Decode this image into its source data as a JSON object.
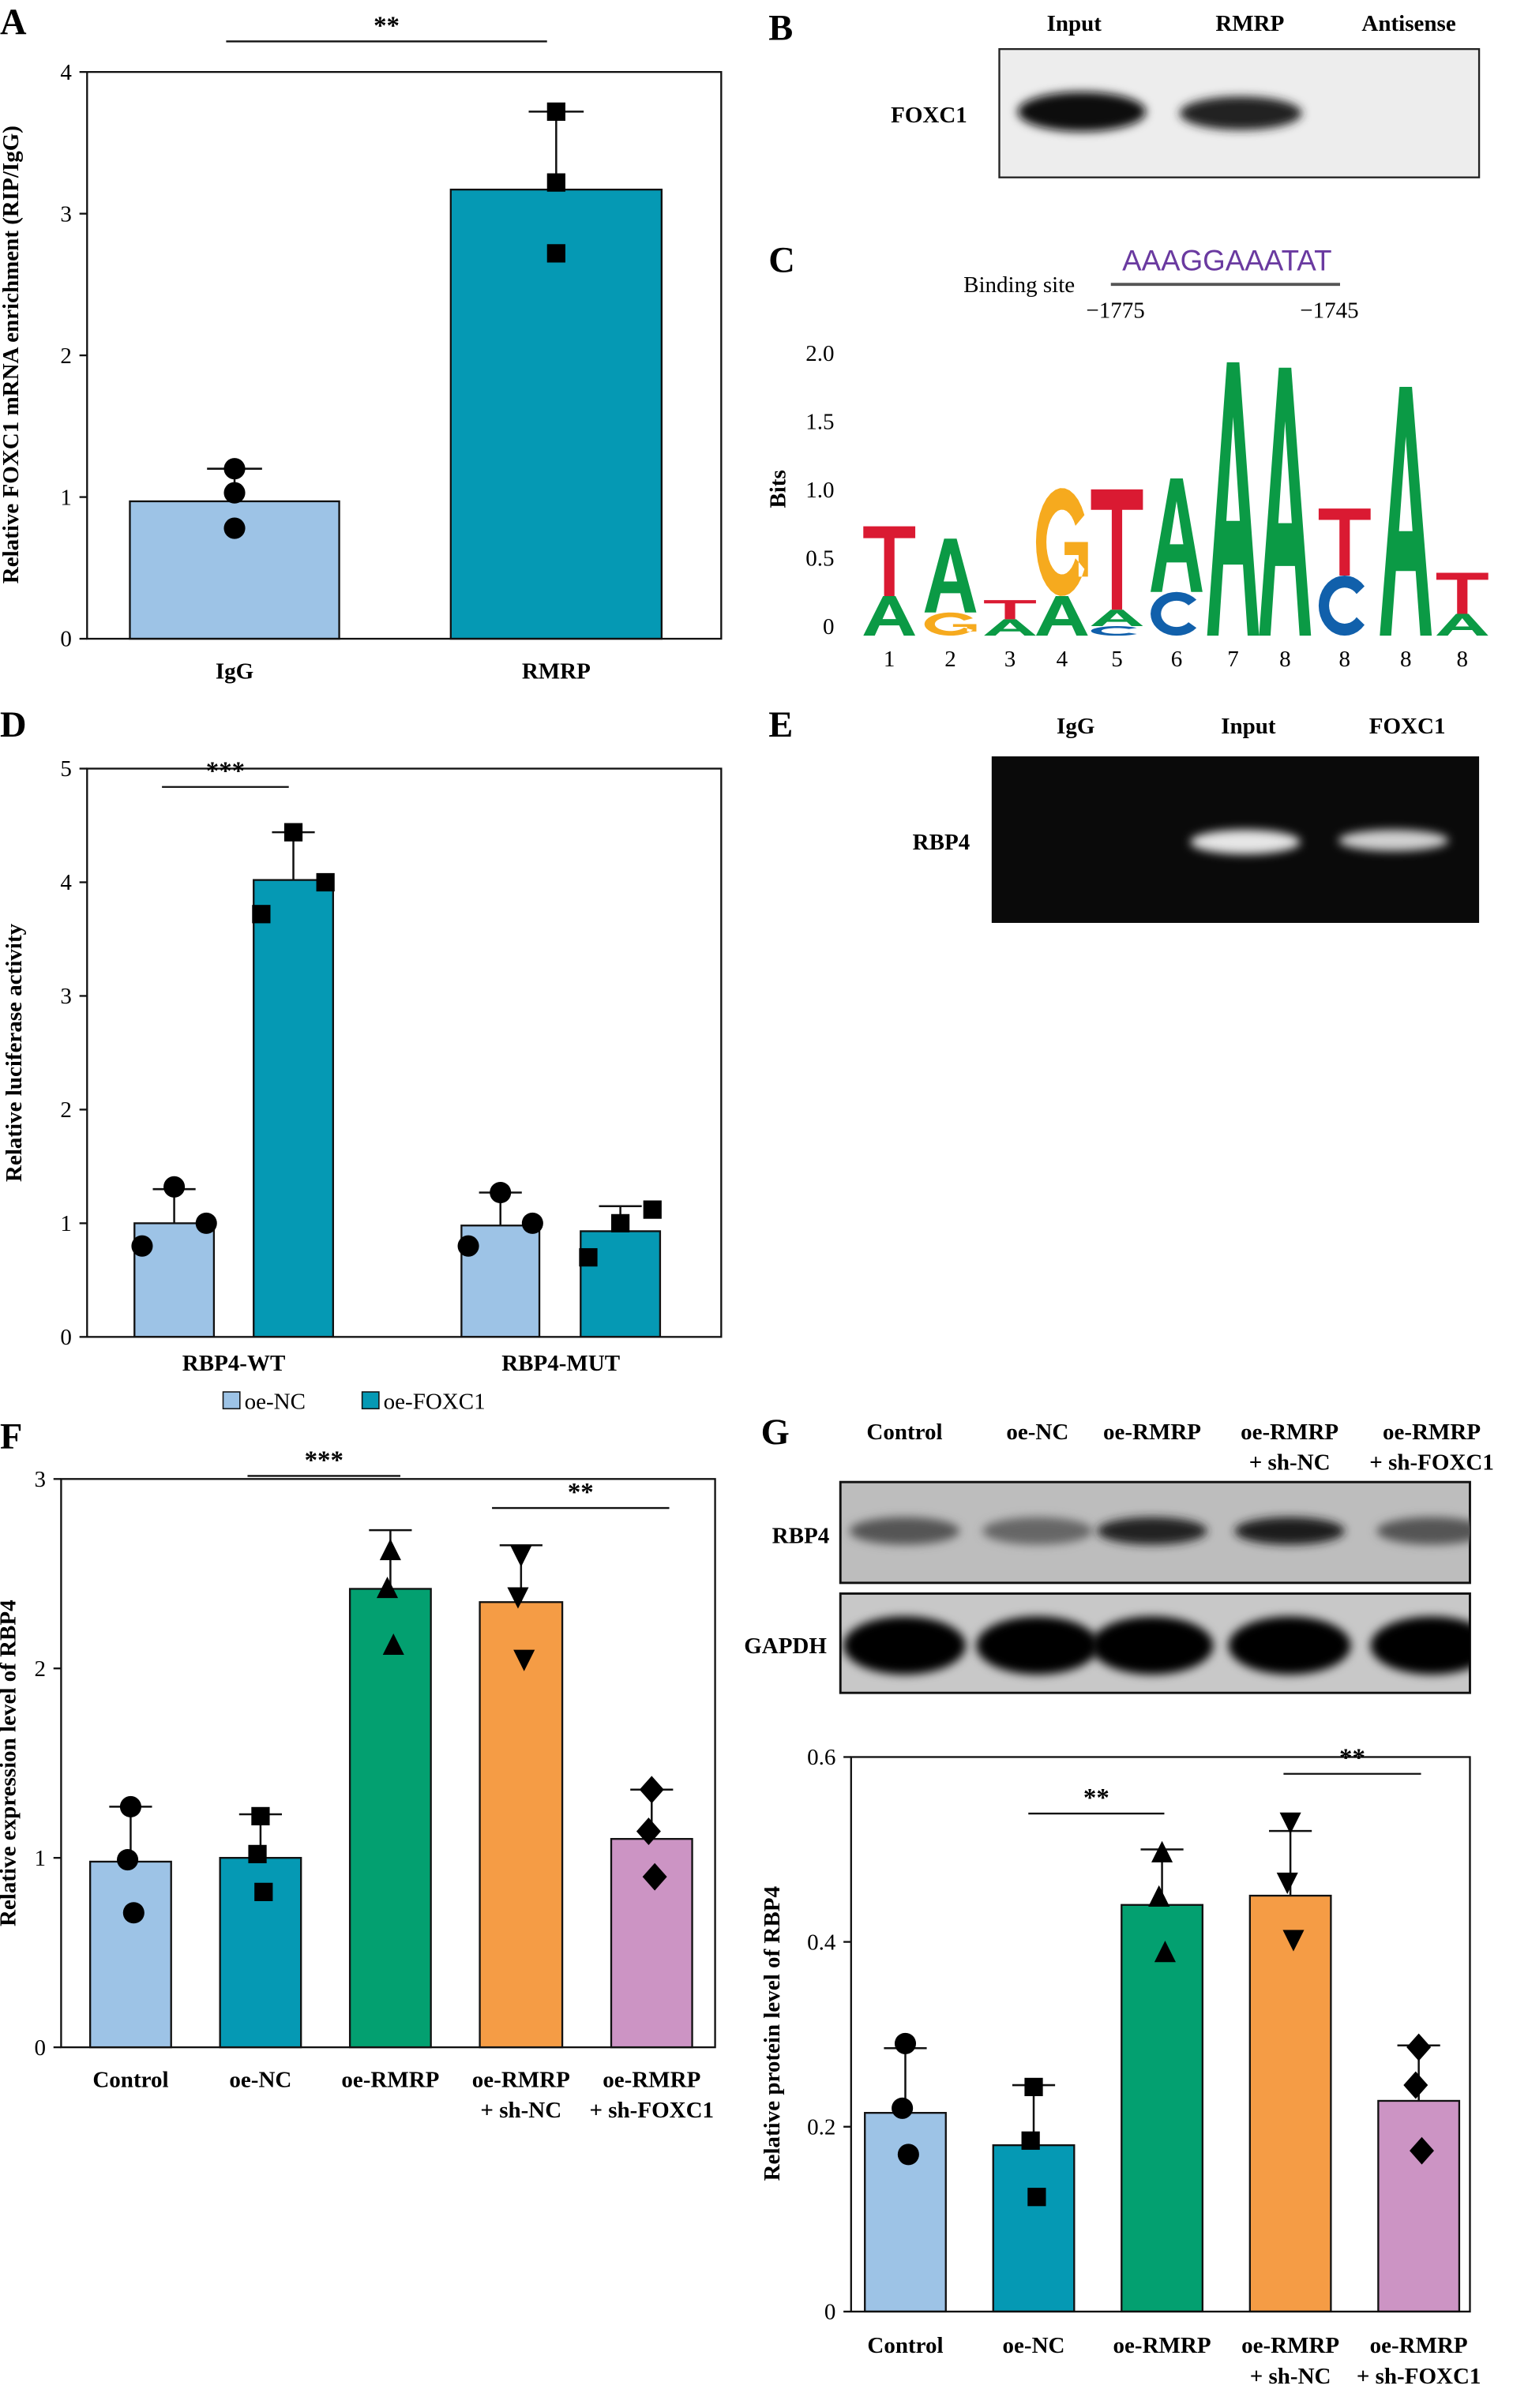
{
  "panel_labels": [
    "A",
    "B",
    "C",
    "D",
    "E",
    "F",
    "G"
  ],
  "blot_B": {
    "lanes": [
      "Input",
      "RMRP",
      "Antisense"
    ],
    "row": "FOXC1"
  },
  "blot_E": {
    "lanes": [
      "IgG",
      "Input",
      "FOXC1"
    ],
    "row": "RBP4"
  },
  "blot_G": {
    "lanes": [
      [
        "Control"
      ],
      [
        "oe-NC"
      ],
      [
        "oe-RMRP"
      ],
      [
        "oe-RMRP",
        "+ sh-NC"
      ],
      [
        "oe-RMRP",
        "+ sh-FOXC1"
      ]
    ],
    "rows": [
      "RBP4",
      "GAPDH"
    ]
  },
  "motif": {
    "binding_label": "Binding site",
    "sequence": "AAAGGAAATAT",
    "start": "−1775",
    "end": "−1745",
    "ylabel": "Bits",
    "yticks": [
      "0",
      "0.5",
      "1.0",
      "1.5",
      "2.0"
    ],
    "positions": [
      "1",
      "2",
      "3",
      "4",
      "5",
      "6",
      "7",
      "8",
      "8",
      "8",
      "8"
    ],
    "letter_colors": {
      "A": "#0b9a45",
      "T": "#da1a32",
      "G": "#f6aa1e",
      "C": "#1160ab"
    },
    "columns": [
      [
        [
          "A",
          0.29
        ],
        [
          "T",
          0.51
        ]
      ],
      [
        [
          "G",
          0.17
        ],
        [
          "A",
          0.54
        ]
      ],
      [
        [
          "A",
          0.12
        ],
        [
          "T",
          0.14
        ]
      ],
      [
        [
          "A",
          0.29
        ],
        [
          "G",
          0.79
        ]
      ],
      [
        [
          "C",
          0.07
        ],
        [
          "A",
          0.12
        ],
        [
          "T",
          0.88
        ]
      ],
      [
        [
          "C",
          0.32
        ],
        [
          "A",
          0.83
        ]
      ],
      [
        [
          "A",
          2.0
        ]
      ],
      [
        [
          "A",
          1.96
        ]
      ],
      [
        [
          "C",
          0.44
        ],
        [
          "T",
          0.49
        ]
      ],
      [
        [
          "A",
          1.82
        ]
      ],
      [
        [
          "A",
          0.16
        ],
        [
          "T",
          0.3
        ]
      ]
    ]
  },
  "chart_data": [
    {
      "panel": "A",
      "type": "bar",
      "ylabel": "Relative FOXC1 mRNA enrichment (RIP/IgG)",
      "ylim": [
        0,
        4
      ],
      "yticks": [
        0,
        1,
        2,
        3,
        4
      ],
      "categories": [
        [
          "IgG"
        ],
        [
          "RMRP"
        ]
      ],
      "values": [
        0.97,
        3.17
      ],
      "errors": [
        1.2,
        3.72
      ],
      "points": [
        [
          1.2,
          1.03,
          0.78
        ],
        [
          3.72,
          3.22,
          2.72
        ]
      ],
      "markers": [
        "circle",
        "square"
      ],
      "colors": [
        "#9dc3e6",
        "#0599b4"
      ],
      "significance": [
        {
          "label": "**"
        }
      ]
    },
    {
      "panel": "D",
      "type": "bar",
      "ylabel": "Relative luciferase activity",
      "ylim": [
        0,
        5
      ],
      "yticks": [
        0,
        1,
        2,
        3,
        4,
        5
      ],
      "categories": [
        [
          "RBP4-WT"
        ],
        [
          "RBP4-MUT"
        ]
      ],
      "series": [
        {
          "name": "oe-NC",
          "values": [
            1.0,
            0.98
          ],
          "errors": [
            1.3,
            1.27
          ],
          "points": [
            [
              1.32,
              0.8,
              1.0
            ],
            [
              1.27,
              0.8,
              1.0
            ]
          ],
          "marker": "circle",
          "color": "#9dc3e6"
        },
        {
          "name": "oe-FOXC1",
          "values": [
            4.02,
            0.93
          ],
          "errors": [
            4.44,
            1.15
          ],
          "points": [
            [
              4.44,
              3.72,
              4.0
            ],
            [
              1.0,
              0.7,
              1.12
            ]
          ],
          "marker": "square",
          "color": "#0599b4"
        }
      ],
      "legend": "bottom",
      "significance": [
        {
          "label": "***"
        }
      ]
    },
    {
      "panel": "F",
      "type": "bar",
      "ylabel": "Relative expression level of RBP4",
      "ylim": [
        0,
        3
      ],
      "yticks": [
        0,
        1,
        2,
        3
      ],
      "categories": [
        [
          "Control"
        ],
        [
          "oe-NC"
        ],
        [
          "oe-RMRP"
        ],
        [
          "oe-RMRP",
          "+ sh-NC"
        ],
        [
          "oe-RMRP",
          "+ sh-FOXC1"
        ]
      ],
      "values": [
        0.98,
        1.0,
        2.42,
        2.35,
        1.1
      ],
      "errors": [
        1.27,
        1.23,
        2.73,
        2.65,
        1.36
      ],
      "points": [
        [
          1.27,
          0.99,
          0.71
        ],
        [
          1.22,
          1.02,
          0.82
        ],
        [
          2.62,
          2.42,
          2.12
        ],
        [
          2.6,
          2.38,
          2.05
        ],
        [
          1.36,
          1.14,
          0.9
        ]
      ],
      "markers": [
        "circle",
        "square",
        "triangle-up",
        "triangle-down",
        "diamond"
      ],
      "colors": [
        "#9dc3e6",
        "#0599b4",
        "#03a070",
        "#f59c45",
        "#cc94c4"
      ],
      "significance": [
        {
          "label": "***"
        },
        {
          "label": "**"
        }
      ]
    },
    {
      "panel": "G",
      "type": "bar",
      "ylabel": "Relative protein level of RBP4",
      "ylim": [
        0,
        0.6
      ],
      "yticks": [
        0,
        0.2,
        0.4,
        0.6
      ],
      "categories": [
        [
          "Control"
        ],
        [
          "oe-NC"
        ],
        [
          "oe-RMRP"
        ],
        [
          "oe-RMRP",
          "+ sh-NC"
        ],
        [
          "oe-RMRP",
          "+ sh-FOXC1"
        ]
      ],
      "values": [
        0.215,
        0.18,
        0.44,
        0.45,
        0.228
      ],
      "errors": [
        0.285,
        0.245,
        0.5,
        0.52,
        0.288
      ],
      "points": [
        [
          0.29,
          0.22,
          0.17
        ],
        [
          0.243,
          0.185,
          0.124
        ],
        [
          0.496,
          0.448,
          0.388
        ],
        [
          0.53,
          0.465,
          0.403
        ],
        [
          0.286,
          0.245,
          0.174
        ]
      ],
      "markers": [
        "circle",
        "square",
        "triangle-up",
        "triangle-down",
        "diamond"
      ],
      "colors": [
        "#9dc3e6",
        "#0599b4",
        "#03a070",
        "#f59c45",
        "#cc94c4"
      ],
      "significance": [
        {
          "label": "**"
        },
        {
          "label": "**"
        }
      ]
    }
  ]
}
